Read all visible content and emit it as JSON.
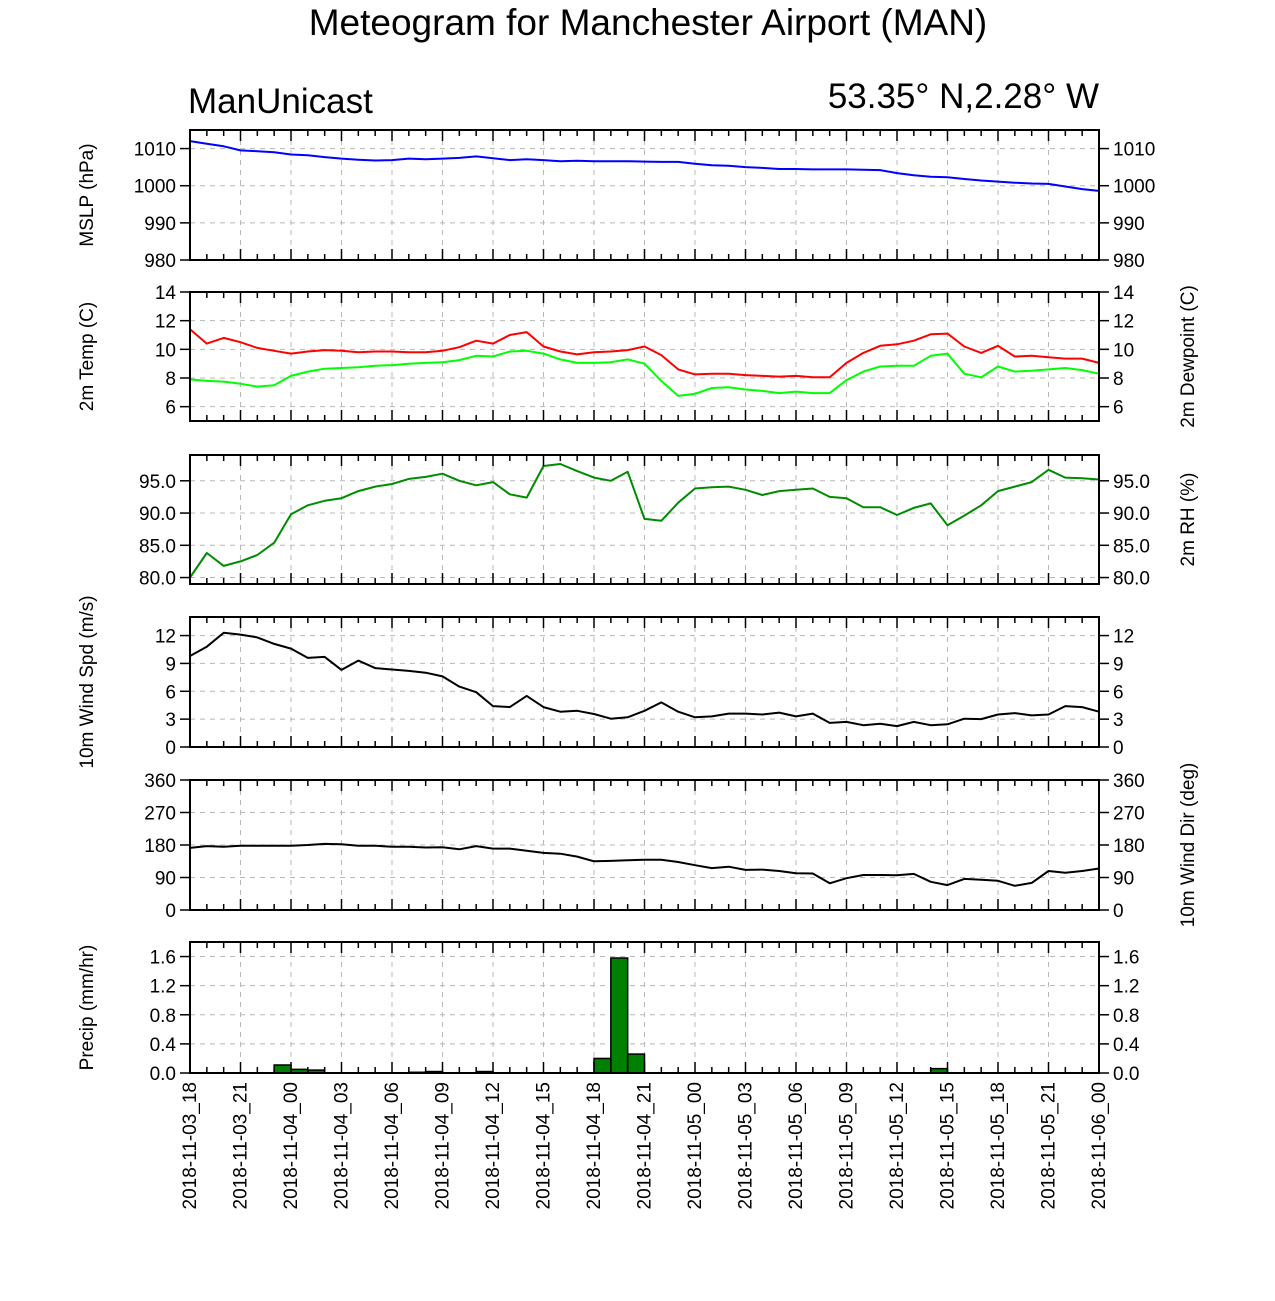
{
  "header": {
    "title": "Meteogram for Manchester Airport (MAN)",
    "model_label": "ManUnicast",
    "location": "53.35° N,2.28° W"
  },
  "chart_data": {
    "type": "line",
    "x_tick_labels": [
      "2018-11-03_18",
      "2018-11-03_21",
      "2018-11-04_00",
      "2018-11-04_03",
      "2018-11-04_06",
      "2018-11-04_09",
      "2018-11-04_12",
      "2018-11-04_15",
      "2018-11-04_18",
      "2018-11-04_21",
      "2018-11-05_00",
      "2018-11-05_03",
      "2018-11-05_06",
      "2018-11-05_09",
      "2018-11-05_12",
      "2018-11-05_15",
      "2018-11-05_18",
      "2018-11-05_21",
      "2018-11-06_00"
    ],
    "x_hours_range": [
      0,
      54
    ],
    "panels": [
      {
        "id": "mslp",
        "type": "line",
        "ylabel_left": "MSLP (hPa)",
        "ylabel_right": "",
        "ylim": [
          980,
          1015
        ],
        "yticks": [
          980,
          990,
          1000,
          1010
        ],
        "tick_labels": [
          "980",
          "990",
          "1000",
          "1010"
        ],
        "series": [
          {
            "color": "#0000ff",
            "values": [
              1012,
              1011.3,
              1010.6,
              1009.5,
              1009.3,
              1009,
              1008.4,
              1008.2,
              1007.7,
              1007.3,
              1007,
              1006.8,
              1006.9,
              1007.3,
              1007.1,
              1007.3,
              1007.5,
              1007.9,
              1007.4,
              1006.9,
              1007.1,
              1006.9,
              1006.6,
              1006.7,
              1006.6,
              1006.6,
              1006.6,
              1006.5,
              1006.4,
              1006.4,
              1005.9,
              1005.5,
              1005.4,
              1005,
              1004.8,
              1004.5,
              1004.5,
              1004.4,
              1004.4,
              1004.4,
              1004.3,
              1004.2,
              1003.4,
              1002.8,
              1002.4,
              1002.3,
              1001.8,
              1001.4,
              1001.1,
              1000.8,
              1000.6,
              1000.5,
              999.8,
              999.1,
              998.6
            ]
          }
        ]
      },
      {
        "id": "temp",
        "type": "line",
        "ylabel_left": "2m Temp (C)",
        "ylabel_right": "2m Dewpoint (C)",
        "ylim": [
          5,
          14
        ],
        "yticks": [
          6,
          8,
          10,
          12,
          14
        ],
        "tick_labels": [
          "6",
          "8",
          "10",
          "12",
          "14"
        ],
        "series": [
          {
            "color": "#ff0000",
            "values": [
              11.4,
              10.4,
              10.8,
              10.5,
              10.1,
              9.9,
              9.7,
              9.85,
              9.95,
              9.9,
              9.8,
              9.85,
              9.85,
              9.8,
              9.8,
              9.9,
              10.15,
              10.6,
              10.4,
              11,
              11.2,
              10.2,
              9.85,
              9.65,
              9.8,
              9.85,
              9.95,
              10.2,
              9.6,
              8.6,
              8.25,
              8.3,
              8.3,
              8.2,
              8.15,
              8.1,
              8.15,
              8.05,
              8.05,
              9.05,
              9.75,
              10.25,
              10.35,
              10.6,
              11.05,
              11.1,
              10.2,
              9.75,
              10.25,
              9.5,
              9.55,
              9.45,
              9.35,
              9.35,
              9.05
            ]
          },
          {
            "color": "#00ff00",
            "values": [
              7.9,
              7.8,
              7.75,
              7.6,
              7.4,
              7.5,
              8.15,
              8.45,
              8.65,
              8.7,
              8.75,
              8.85,
              8.9,
              9,
              9.05,
              9.1,
              9.25,
              9.55,
              9.5,
              9.85,
              9.9,
              9.7,
              9.3,
              9.05,
              9.05,
              9.1,
              9.3,
              9,
              7.8,
              6.75,
              6.9,
              7.3,
              7.35,
              7.2,
              7.1,
              6.95,
              7.05,
              6.95,
              6.95,
              7.85,
              8.45,
              8.8,
              8.85,
              8.85,
              9.55,
              9.7,
              8.3,
              8.05,
              8.8,
              8.45,
              8.5,
              8.6,
              8.7,
              8.55,
              8.3
            ]
          }
        ]
      },
      {
        "id": "rh",
        "type": "line",
        "ylabel_left": "",
        "ylabel_right": "2m RH (%)",
        "ylim": [
          79,
          99
        ],
        "yticks": [
          80,
          85,
          90,
          95
        ],
        "tick_labels": [
          "80.0",
          "85.0",
          "90.0",
          "95.0"
        ],
        "series": [
          {
            "color": "#008c00",
            "values": [
              80,
              83.8,
              81.8,
              82.5,
              83.5,
              85.4,
              89.8,
              91.2,
              91.9,
              92.3,
              93.4,
              94.1,
              94.5,
              95.3,
              95.6,
              96.1,
              95,
              94.3,
              94.8,
              92.9,
              92.4,
              97.3,
              97.6,
              96.5,
              95.5,
              95,
              96.4,
              89.1,
              88.8,
              91.6,
              93.8,
              94,
              94.1,
              93.6,
              92.8,
              93.4,
              93.6,
              93.8,
              92.5,
              92.3,
              90.9,
              90.9,
              89.7,
              90.8,
              91.5,
              88.1,
              89.6,
              91.2,
              93.4,
              94.1,
              94.8,
              96.7,
              95.5,
              95.4,
              95.2
            ]
          }
        ]
      },
      {
        "id": "wspd",
        "type": "line",
        "ylabel_left": "10m Wind Spd (m/s)",
        "ylabel_right": "",
        "ylim": [
          0,
          14
        ],
        "yticks": [
          0,
          3,
          6,
          9,
          12
        ],
        "tick_labels": [
          "0",
          "3",
          "6",
          "9",
          "12"
        ],
        "series": [
          {
            "color": "#000000",
            "values": [
              9.8,
              10.8,
              12.3,
              12.1,
              11.8,
              11.1,
              10.6,
              9.6,
              9.7,
              8.3,
              9.3,
              8.5,
              8.35,
              8.2,
              8,
              7.6,
              6.5,
              5.9,
              4.4,
              4.3,
              5.5,
              4.3,
              3.8,
              3.9,
              3.55,
              3.05,
              3.2,
              3.9,
              4.8,
              3.8,
              3.2,
              3.3,
              3.6,
              3.6,
              3.5,
              3.7,
              3.3,
              3.6,
              2.6,
              2.7,
              2.35,
              2.5,
              2.25,
              2.7,
              2.35,
              2.45,
              3.05,
              3,
              3.5,
              3.65,
              3.4,
              3.5,
              4.4,
              4.3,
              3.8
            ]
          }
        ]
      },
      {
        "id": "wdir",
        "type": "line",
        "ylabel_left": "",
        "ylabel_right": "10m Wind Dir (deg)",
        "ylim": [
          0,
          360
        ],
        "yticks": [
          0,
          90,
          180,
          270,
          360
        ],
        "tick_labels": [
          "0",
          "90",
          "180",
          "270",
          "360"
        ],
        "series": [
          {
            "color": "#000000",
            "values": [
              172,
              177,
              175,
              178,
              178,
              178,
              178,
              180,
              183,
              182,
              178,
              178,
              175,
              175,
              173,
              174,
              168,
              177,
              170,
              170,
              164,
              158,
              156,
              148,
              135,
              136,
              138,
              139,
              139,
              133,
              124,
              116,
              120,
              111,
              112,
              108,
              102,
              101,
              74,
              88,
              97,
              97,
              96,
              100,
              78,
              69,
              86,
              84,
              81,
              67,
              75,
              108,
              103,
              108,
              115
            ]
          }
        ]
      },
      {
        "id": "precip",
        "type": "bar",
        "ylabel_left": "Precip (mm/hr)",
        "ylabel_right": "",
        "ylim": [
          0,
          1.8
        ],
        "yticks": [
          0,
          0.4,
          0.8,
          1.2,
          1.6
        ],
        "tick_labels": [
          "0.0",
          "0.4",
          "0.8",
          "1.2",
          "1.6"
        ],
        "bars": [
          {
            "hour": 5.5,
            "value": 0.11
          },
          {
            "hour": 6.5,
            "value": 0.05
          },
          {
            "hour": 7.5,
            "value": 0.04
          },
          {
            "hour": 13.5,
            "value": 0.01
          },
          {
            "hour": 14.5,
            "value": 0.02
          },
          {
            "hour": 17.5,
            "value": 0.02
          },
          {
            "hour": 24.5,
            "value": 0.2
          },
          {
            "hour": 25.5,
            "value": 1.58
          },
          {
            "hour": 26.5,
            "value": 0.26
          },
          {
            "hour": 44.5,
            "value": 0.06
          }
        ],
        "bar_color": "#008000"
      }
    ],
    "grid": true
  }
}
